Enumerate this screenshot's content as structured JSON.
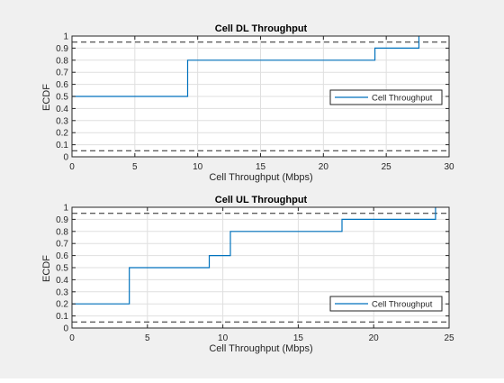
{
  "chart_data": [
    {
      "type": "line",
      "title": "Cell DL Throughput",
      "xlabel": "Cell Throughput (Mbps)",
      "ylabel": "ECDF",
      "xlim": [
        0,
        30
      ],
      "ylim": [
        0,
        1
      ],
      "xticks": [
        0,
        5,
        10,
        15,
        20,
        25,
        30
      ],
      "yticks": [
        0,
        0.1,
        0.2,
        0.3,
        0.4,
        0.5,
        0.6,
        0.7,
        0.8,
        0.9,
        1
      ],
      "grid": true,
      "legend": "center-right",
      "reference_lines": [
        0.05,
        0.95
      ],
      "series": [
        {
          "name": "Cell Throughput",
          "color": "#0072bd",
          "step": true,
          "x": [
            0,
            9.2,
            9.2,
            24.1,
            24.1,
            27.6,
            27.6
          ],
          "y": [
            0.5,
            0.5,
            0.8,
            0.8,
            0.9,
            0.9,
            1.0
          ]
        }
      ]
    },
    {
      "type": "line",
      "title": "Cell UL Throughput",
      "xlabel": "Cell Throughput (Mbps)",
      "ylabel": "ECDF",
      "xlim": [
        0,
        25
      ],
      "ylim": [
        0,
        1
      ],
      "xticks": [
        0,
        5,
        10,
        15,
        20,
        25
      ],
      "yticks": [
        0,
        0.1,
        0.2,
        0.3,
        0.4,
        0.5,
        0.6,
        0.7,
        0.8,
        0.9,
        1
      ],
      "grid": true,
      "legend": "bottom-right",
      "reference_lines": [
        0.05,
        0.95
      ],
      "series": [
        {
          "name": "Cell Throughput",
          "color": "#0072bd",
          "step": true,
          "x": [
            0,
            3.8,
            3.8,
            9.1,
            9.1,
            10.5,
            10.5,
            17.9,
            17.9,
            24.1,
            24.1
          ],
          "y": [
            0.2,
            0.2,
            0.5,
            0.5,
            0.6,
            0.6,
            0.8,
            0.8,
            0.9,
            0.9,
            1.0
          ]
        }
      ]
    }
  ]
}
